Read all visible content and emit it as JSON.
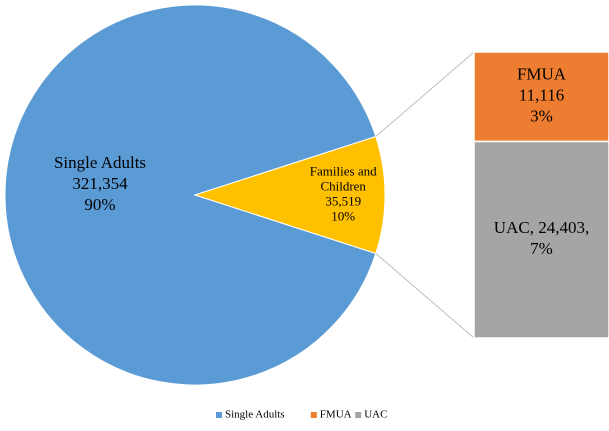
{
  "chart_data": {
    "type": "bar-of-pie",
    "slices": [
      {
        "name": "Single Adults",
        "value": 321354,
        "label": [
          "Single Adults",
          "321,354",
          "90%"
        ],
        "color": "#5b9bd5"
      },
      {
        "value": 35519,
        "label": [
          "Families and",
          "Children",
          "35,519",
          "10%"
        ],
        "color": "#ffc000"
      }
    ],
    "breakdown": [
      {
        "name": "FMUA",
        "value": 11116,
        "label": [
          "FMUA",
          "11,116",
          "3%"
        ],
        "color": "#ed7d31"
      },
      {
        "name": "UAC",
        "value": 24403,
        "label": [
          "UAC, 24,403,",
          "7%"
        ],
        "color": "#a5a5a5"
      }
    ],
    "legend": {
      "position": "bottom"
    }
  }
}
